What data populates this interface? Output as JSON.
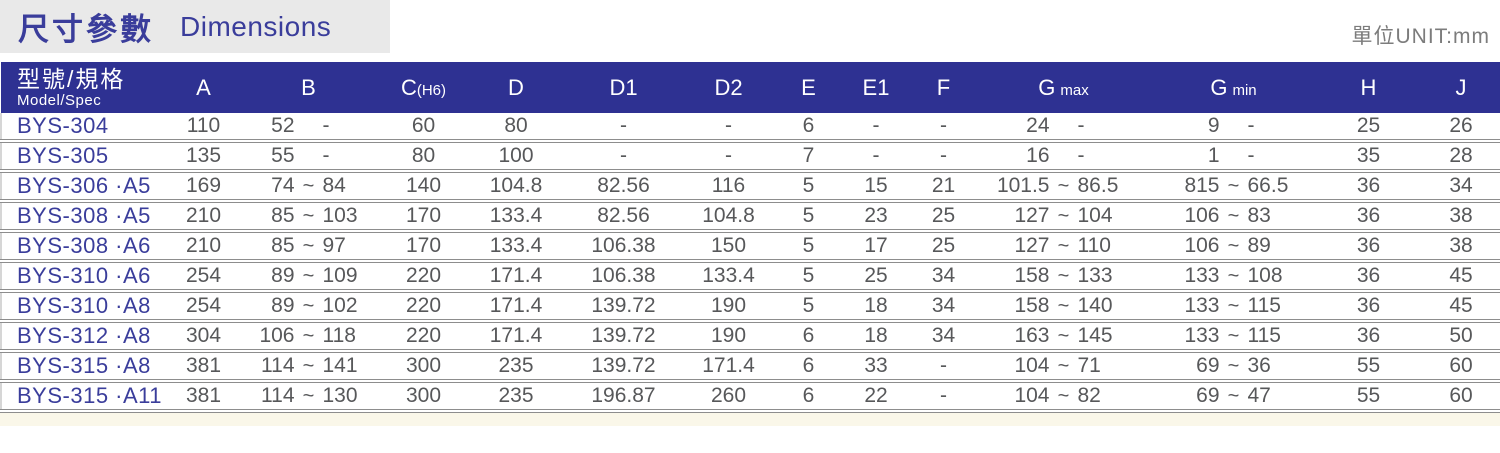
{
  "header": {
    "title_zh": "尺寸參數",
    "title_en": "Dimensions",
    "unit_label": "單位UNIT:mm"
  },
  "table": {
    "model_header": {
      "zh": "型號/規格",
      "en": "Model/Spec"
    },
    "columns": [
      {
        "key": "a",
        "label": "A",
        "suffix": "",
        "gap": false
      },
      {
        "key": "b",
        "label": "B",
        "suffix": "",
        "gap": false
      },
      {
        "key": "c",
        "label": "C",
        "suffix": "(H6)",
        "gap": false
      },
      {
        "key": "d",
        "label": "D",
        "suffix": "",
        "gap": false
      },
      {
        "key": "d1",
        "label": "D1",
        "suffix": "",
        "gap": false
      },
      {
        "key": "d2",
        "label": "D2",
        "suffix": "",
        "gap": false
      },
      {
        "key": "e",
        "label": "E",
        "suffix": "",
        "gap": false
      },
      {
        "key": "e1",
        "label": "E1",
        "suffix": "",
        "gap": false
      },
      {
        "key": "f",
        "label": "F",
        "suffix": "",
        "gap": false
      },
      {
        "key": "gmax",
        "label": "G",
        "suffix": "max",
        "gap": true
      },
      {
        "key": "gmin",
        "label": "G",
        "suffix": "min",
        "gap": true
      },
      {
        "key": "h",
        "label": "H",
        "suffix": "",
        "gap": false
      },
      {
        "key": "j",
        "label": "J",
        "suffix": "",
        "gap": false
      }
    ],
    "rows": [
      {
        "model": "BYS-304",
        "cells": {
          "a": "110",
          "b": [
            "52",
            "",
            "-"
          ],
          "c": "60",
          "d": "80",
          "d1": "-",
          "d2": "-",
          "e": "6",
          "e1": "-",
          "f": "-",
          "gmax": [
            "24",
            "",
            "-"
          ],
          "gmin": [
            "9",
            "",
            "-"
          ],
          "h": "25",
          "j": "26"
        }
      },
      {
        "model": "BYS-305",
        "cells": {
          "a": "135",
          "b": [
            "55",
            "",
            "-"
          ],
          "c": "80",
          "d": "100",
          "d1": "-",
          "d2": "-",
          "e": "7",
          "e1": "-",
          "f": "-",
          "gmax": [
            "16",
            "",
            "-"
          ],
          "gmin": [
            "1",
            "",
            "-"
          ],
          "h": "35",
          "j": "28"
        }
      },
      {
        "model": "BYS-306 ·A5",
        "cells": {
          "a": "169",
          "b": [
            "74",
            "~",
            "84"
          ],
          "c": "140",
          "d": "104.8",
          "d1": "82.56",
          "d2": "116",
          "e": "5",
          "e1": "15",
          "f": "21",
          "gmax": [
            "101.5",
            "~",
            "86.5"
          ],
          "gmin": [
            "815",
            "~",
            "66.5"
          ],
          "h": "36",
          "j": "34"
        }
      },
      {
        "model": "BYS-308 ·A5",
        "cells": {
          "a": "210",
          "b": [
            "85",
            "~",
            "103"
          ],
          "c": "170",
          "d": "133.4",
          "d1": "82.56",
          "d2": "104.8",
          "e": "5",
          "e1": "23",
          "f": "25",
          "gmax": [
            "127",
            "~",
            "104"
          ],
          "gmin": [
            "106",
            "~",
            "83"
          ],
          "h": "36",
          "j": "38"
        }
      },
      {
        "model": "BYS-308 ·A6",
        "cells": {
          "a": "210",
          "b": [
            "85",
            "~",
            "97"
          ],
          "c": "170",
          "d": "133.4",
          "d1": "106.38",
          "d2": "150",
          "e": "5",
          "e1": "17",
          "f": "25",
          "gmax": [
            "127",
            "~",
            "110"
          ],
          "gmin": [
            "106",
            "~",
            "89"
          ],
          "h": "36",
          "j": "38"
        }
      },
      {
        "model": "BYS-310 ·A6",
        "cells": {
          "a": "254",
          "b": [
            "89",
            "~",
            "109"
          ],
          "c": "220",
          "d": "171.4",
          "d1": "106.38",
          "d2": "133.4",
          "e": "5",
          "e1": "25",
          "f": "34",
          "gmax": [
            "158",
            "~",
            "133"
          ],
          "gmin": [
            "133",
            "~",
            "108"
          ],
          "h": "36",
          "j": "45"
        }
      },
      {
        "model": "BYS-310 ·A8",
        "cells": {
          "a": "254",
          "b": [
            "89",
            "~",
            "102"
          ],
          "c": "220",
          "d": "171.4",
          "d1": "139.72",
          "d2": "190",
          "e": "5",
          "e1": "18",
          "f": "34",
          "gmax": [
            "158",
            "~",
            "140"
          ],
          "gmin": [
            "133",
            "~",
            "115"
          ],
          "h": "36",
          "j": "45"
        }
      },
      {
        "model": "BYS-312 ·A8",
        "cells": {
          "a": "304",
          "b": [
            "106",
            "~",
            "118"
          ],
          "c": "220",
          "d": "171.4",
          "d1": "139.72",
          "d2": "190",
          "e": "6",
          "e1": "18",
          "f": "34",
          "gmax": [
            "163",
            "~",
            "145"
          ],
          "gmin": [
            "133",
            "~",
            "115"
          ],
          "h": "36",
          "j": "50"
        }
      },
      {
        "model": "BYS-315 ·A8",
        "cells": {
          "a": "381",
          "b": [
            "114",
            "~",
            "141"
          ],
          "c": "300",
          "d": "235",
          "d1": "139.72",
          "d2": "171.4",
          "e": "6",
          "e1": "33",
          "f": "-",
          "gmax": [
            "104",
            "~",
            "71"
          ],
          "gmin": [
            "69",
            "~",
            "36"
          ],
          "h": "55",
          "j": "60"
        }
      },
      {
        "model": "BYS-315 ·A11",
        "cells": {
          "a": "381",
          "b": [
            "114",
            "~",
            "130"
          ],
          "c": "300",
          "d": "235",
          "d1": "196.87",
          "d2": "260",
          "e": "6",
          "e1": "22",
          "f": "-",
          "gmax": [
            "104",
            "~",
            "82"
          ],
          "gmin": [
            "69",
            "~",
            "47"
          ],
          "h": "55",
          "j": "60"
        }
      }
    ]
  },
  "colors": {
    "header_bg": "#2e3192",
    "accent_blue": "#3a3d9b",
    "data_gray": "#57585a",
    "band_gray": "#e9e9e9",
    "footer_cream": "#faf7e9"
  }
}
